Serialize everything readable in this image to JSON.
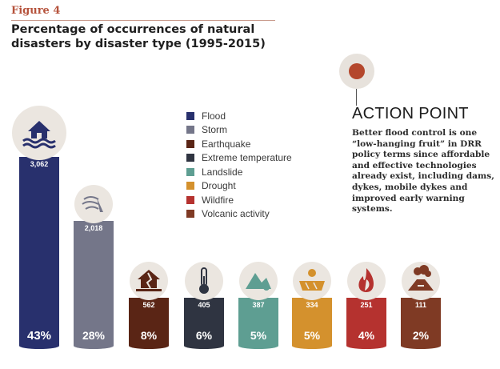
{
  "figure_label": "Figure 4",
  "title": "Percentage of occurrences of natural disasters by disaster type (1995-2015)",
  "action_point": {
    "heading": "ACTION POINT",
    "body": "Better flood control is one “low-hanging fruit” in DRR policy terms since affordable and effective technologies already exist, including dams, dykes, mobile dykes and improved early warning systems."
  },
  "chart_data": {
    "type": "bar",
    "title": "Percentage of occurrences of natural disasters by disaster type (1995-2015)",
    "categories": [
      "Flood",
      "Storm",
      "Earthquake",
      "Extreme temperature",
      "Landslide",
      "Drought",
      "Wildfire",
      "Volcanic activity"
    ],
    "values": [
      3062,
      2018,
      562,
      405,
      387,
      334,
      251,
      111
    ],
    "value_labels": [
      "3,062",
      "2,018",
      "562",
      "405",
      "387",
      "334",
      "251",
      "111"
    ],
    "percent_labels": [
      "43%",
      "28%",
      "8%",
      "6%",
      "5%",
      "5%",
      "4%",
      "2%"
    ],
    "colors": [
      "#28306d",
      "#747689",
      "#5a2515",
      "#2f3441",
      "#5e9e92",
      "#d4912d",
      "#b5322f",
      "#7f3a24"
    ],
    "icons": [
      "flood-icon",
      "storm-icon",
      "earthquake-icon",
      "thermometer-icon",
      "landslide-icon",
      "drought-icon",
      "wildfire-icon",
      "volcano-icon"
    ],
    "legend": [
      "Flood",
      "Storm",
      "Earthquake",
      "Extreme temperature",
      "Landslide",
      "Drought",
      "Wildfire",
      "Volcanic activity"
    ],
    "legend_position": "top-center",
    "grid": false
  }
}
